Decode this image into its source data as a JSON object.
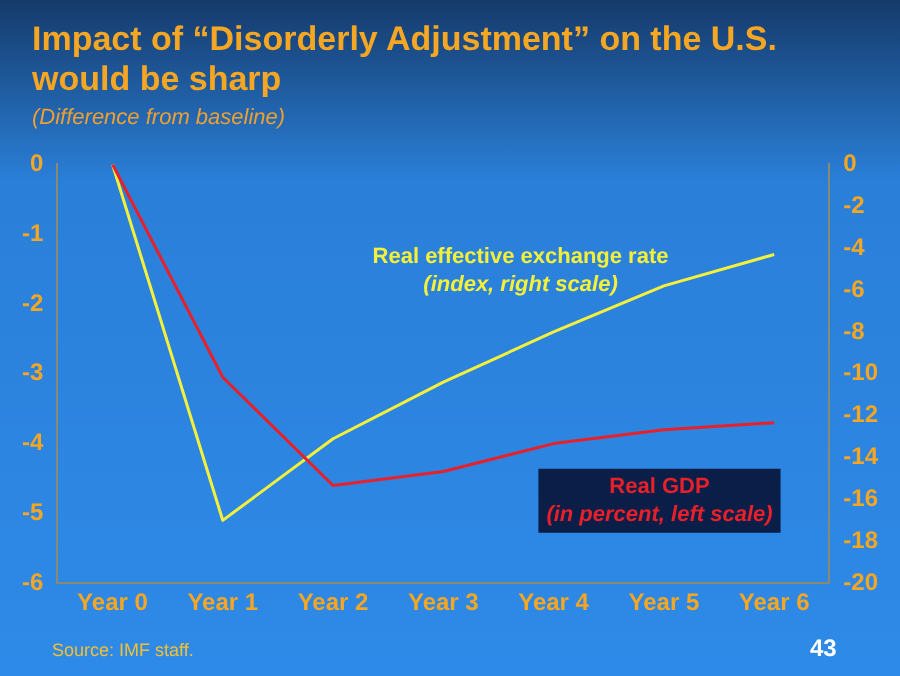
{
  "chart_data": {
    "type": "line",
    "title": "Impact of “Disorderly Adjustment” on the U.S. would be sharp",
    "subtitle": "(Difference from baseline)",
    "categories": [
      "Year 0",
      "Year 1",
      "Year 2",
      "Year 3",
      "Year 4",
      "Year 5",
      "Year 6"
    ],
    "series": [
      {
        "name": "Real GDP\n(in percent, left scale)",
        "color": "#e8202a",
        "values": [
          0,
          -3.05,
          -4.6,
          -4.4,
          -4.0,
          -3.8,
          -3.7
        ]
      },
      {
        "name": "Real effective exchange rate\n(index, right scale)",
        "color": "#f5f03a",
        "axis": "y2",
        "values": [
          0,
          -17.0,
          -13.1,
          -10.4,
          -8.0,
          -5.8,
          -4.3
        ]
      }
    ],
    "ylim": [
      -6,
      0
    ],
    "yticks": [
      0,
      -1,
      -2,
      -3,
      -4,
      -5,
      -6
    ],
    "y2lim": [
      -20,
      0
    ],
    "y2ticks": [
      0,
      -2,
      -4,
      -6,
      -8,
      -10,
      -12,
      -14,
      -16,
      -18,
      -20
    ],
    "grid": false,
    "legend": false,
    "marker": "none",
    "line_style": "solid",
    "annotations": [
      "Source: IMF staff.",
      "43"
    ]
  }
}
